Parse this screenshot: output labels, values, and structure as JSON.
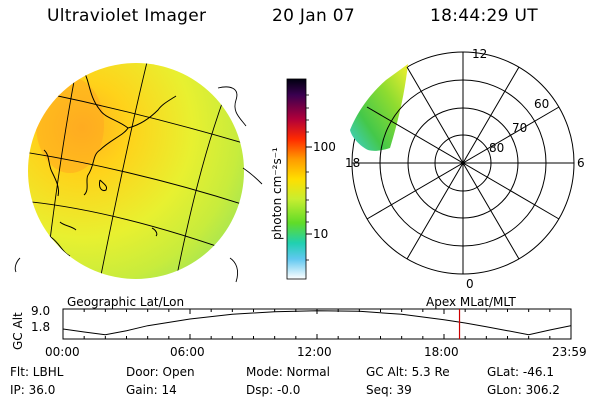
{
  "header": {
    "instrument": "Ultraviolet Imager",
    "date": "20 Jan 07",
    "time": "18:44:29 UT"
  },
  "globe": {
    "label": "Geographic Lat/Lon"
  },
  "polar": {
    "label": "Apex MLat/MLT",
    "mlt_labels": {
      "top": "12",
      "left": "18",
      "right": "6",
      "bottom": "0"
    },
    "lat_labels": [
      "60",
      "70",
      "80"
    ]
  },
  "colorbar": {
    "unit_label": "photon cm⁻²s⁻¹",
    "ticks": [
      "100",
      "10"
    ],
    "scale": "log",
    "colors": [
      "#000000",
      "#5a0040",
      "#c8003c",
      "#ff2000",
      "#ff9900",
      "#ffe000",
      "#ccee33",
      "#66dd22",
      "#22d0a8",
      "#33aaee",
      "#ffffff"
    ]
  },
  "altitude_plot": {
    "ylabel": "GC Alt",
    "y_ticks": [
      "9.0",
      "1.8"
    ],
    "x_ticks": [
      "00:00",
      "06:00",
      "12:00",
      "18:00",
      "23:59"
    ],
    "current_time_marker": "18:44",
    "marker_color": "#cc0000",
    "series": [
      {
        "t": 0,
        "alt": 3.5
      },
      {
        "t": 1,
        "alt": 2.6
      },
      {
        "t": 2,
        "alt": 1.8
      },
      {
        "t": 3,
        "alt": 3.0
      },
      {
        "t": 4,
        "alt": 4.5
      },
      {
        "t": 6,
        "alt": 6.5
      },
      {
        "t": 8,
        "alt": 7.9
      },
      {
        "t": 10,
        "alt": 8.7
      },
      {
        "t": 12,
        "alt": 9.0
      },
      {
        "t": 14,
        "alt": 8.8
      },
      {
        "t": 16,
        "alt": 7.9
      },
      {
        "t": 18,
        "alt": 6.3
      },
      {
        "t": 19,
        "alt": 5.3
      },
      {
        "t": 20,
        "alt": 4.2
      },
      {
        "t": 21,
        "alt": 3.0
      },
      {
        "t": 22,
        "alt": 1.8
      },
      {
        "t": 23,
        "alt": 3.2
      },
      {
        "t": 23.98,
        "alt": 4.5
      }
    ]
  },
  "status": {
    "flt": "Flt: LBHL",
    "ip": "IP: 36.0",
    "door": "Door: Open",
    "gain": "Gain: 14",
    "mode": "Mode: Normal",
    "dsp": "Dsp:   -0.0",
    "gc_alt": "GC Alt: 5.3 Re",
    "seq": "Seq: 39",
    "glat": "GLat: -46.1",
    "glon": "GLon: 306.2"
  }
}
